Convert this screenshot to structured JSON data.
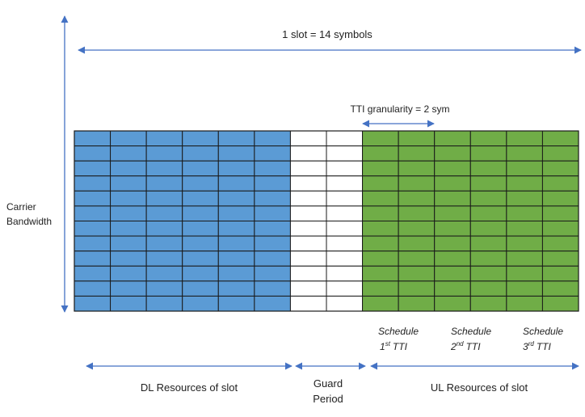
{
  "diagram": {
    "slot_label": "1 slot = 14 symbols",
    "tti_label": "TTI granularity = 2 sym",
    "carrier_label_line1": "Carrier",
    "carrier_label_line2": "Bandwidth",
    "symbols_per_slot": 14,
    "subcarrier_rows": 12,
    "regions": [
      {
        "name": "dl",
        "symbols": 6,
        "color": "#5b9bd5"
      },
      {
        "name": "guard",
        "symbols": 2,
        "color": "#ffffff"
      },
      {
        "name": "ul",
        "symbols": 6,
        "color": "#70ad47"
      }
    ],
    "bottom_labels": {
      "dl": "DL Resources of slot",
      "guard_line1": "Guard",
      "guard_line2": "Period",
      "ul": "UL Resources of slot"
    },
    "schedule": [
      {
        "word": "Schedule",
        "num": "1",
        "sup": "st",
        "tti": "TTI"
      },
      {
        "word": "Schedule",
        "num": "2",
        "sup": "nd",
        "tti": "TTI"
      },
      {
        "word": "Schedule",
        "num": "3",
        "sup": "rd",
        "tti": "TTI"
      }
    ],
    "arrow_color": "#4472c4",
    "grid_line_color": "#1a1a1a"
  }
}
